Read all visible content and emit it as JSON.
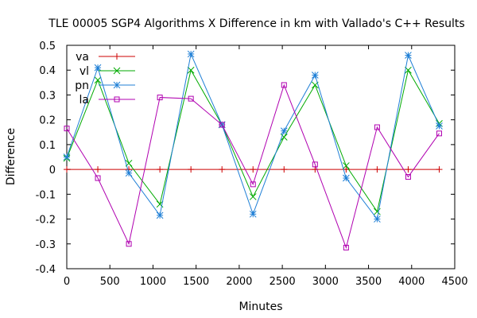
{
  "chart_data": {
    "type": "line",
    "title": "TLE 00005 SGP4 Algorithms X Difference in km with Vallado's C++ Results",
    "xlabel": "Minutes",
    "ylabel": "Difference",
    "xlim": [
      0,
      4500
    ],
    "ylim": [
      -0.4,
      0.5
    ],
    "xticks": [
      "0",
      "500",
      "1000",
      "1500",
      "2000",
      "2500",
      "3000",
      "3500",
      "4000",
      "4500"
    ],
    "yticks": [
      "-0.4",
      "-0.3",
      "-0.2",
      "-0.1",
      "0",
      "0.1",
      "0.2",
      "0.3",
      "0.4",
      "0.5"
    ],
    "legend_position": "top-left",
    "x": [
      0,
      360,
      720,
      1080,
      1440,
      1800,
      2160,
      2520,
      2880,
      3240,
      3600,
      3960,
      4320
    ],
    "series": [
      {
        "name": "va",
        "color": "#cc0000",
        "marker": "plus",
        "values": [
          0,
          0,
          0,
          0,
          0,
          0,
          0,
          0,
          0,
          0,
          0,
          0,
          0
        ]
      },
      {
        "name": "vl",
        "color": "#00aa00",
        "marker": "cross",
        "values": [
          0.045,
          0.36,
          0.025,
          -0.14,
          0.4,
          0.18,
          -0.11,
          0.13,
          0.34,
          0.015,
          -0.17,
          0.4,
          0.185
        ]
      },
      {
        "name": "pn",
        "color": "#1f7fd6",
        "marker": "star",
        "values": [
          0.05,
          0.41,
          -0.015,
          -0.185,
          0.465,
          0.18,
          -0.18,
          0.155,
          0.38,
          -0.035,
          -0.2,
          0.46,
          0.175
        ]
      },
      {
        "name": "la",
        "color": "#b000b0",
        "marker": "square",
        "values": [
          0.165,
          -0.035,
          -0.3,
          0.29,
          0.285,
          0.18,
          -0.06,
          0.34,
          0.02,
          -0.315,
          0.17,
          -0.03,
          0.145
        ]
      }
    ]
  }
}
